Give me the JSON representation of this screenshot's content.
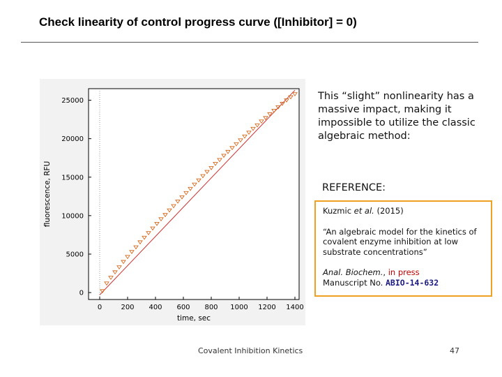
{
  "slide": {
    "title": "Check linearity of control progress curve ([Inhibitor] = 0)",
    "note": "This “slight” nonlinearity has a massive impact, making it impossible to utilize the classic algebraic method:",
    "reference_heading": "REFERENCE:",
    "reference": {
      "authors_pre": "Kuzmic ",
      "authors_etal": "et al.",
      "year": " (2015)",
      "quote": "“An algebraic model for the kinetics of covalent enzyme inhibition at low substrate concentrations”",
      "journal": "Anal. Biochem.",
      "journal_sep": ", ",
      "status": "in press",
      "manuscript_label": "Manuscript No. ",
      "manuscript_id": "ABIO-14-632"
    },
    "footer_left": "Covalent Inhibition Kinetics",
    "page_number": "47"
  },
  "chart_data": {
    "type": "scatter",
    "xlabel": "time, sec",
    "ylabel": "fluorescence, RFU",
    "xlim": [
      -80,
      1430
    ],
    "ylim": [
      -900,
      26500
    ],
    "xticks": [
      0,
      200,
      400,
      600,
      800,
      1000,
      1200,
      1400
    ],
    "yticks": [
      0,
      5000,
      10000,
      15000,
      20000,
      25000
    ],
    "grid": false,
    "points_color": "#d2691e",
    "line_color": "#cc3333",
    "series": [
      {
        "type": "points",
        "x": [
          20,
          50,
          80,
          110,
          140,
          170,
          200,
          230,
          260,
          290,
          320,
          350,
          380,
          410,
          440,
          470,
          500,
          530,
          560,
          590,
          620,
          650,
          680,
          710,
          740,
          770,
          800,
          830,
          860,
          890,
          920,
          950,
          980,
          1010,
          1040,
          1070,
          1100,
          1130,
          1160,
          1190,
          1220,
          1250,
          1280,
          1310,
          1340,
          1370,
          1400
        ],
        "y": [
          200,
          1200,
          1950,
          2650,
          3300,
          4000,
          4650,
          5300,
          5900,
          6550,
          7150,
          7750,
          8350,
          8950,
          9550,
          10100,
          10700,
          11250,
          11850,
          12400,
          12950,
          13500,
          14050,
          14600,
          15150,
          15700,
          16200,
          16750,
          17250,
          17800,
          18300,
          18800,
          19300,
          19800,
          20300,
          20800,
          21300,
          21750,
          22250,
          22700,
          23200,
          23650,
          24100,
          24550,
          25000,
          25400,
          25800
        ]
      },
      {
        "type": "line",
        "x": [
          0,
          1400
        ],
        "y": [
          -300,
          26300
        ]
      }
    ]
  }
}
